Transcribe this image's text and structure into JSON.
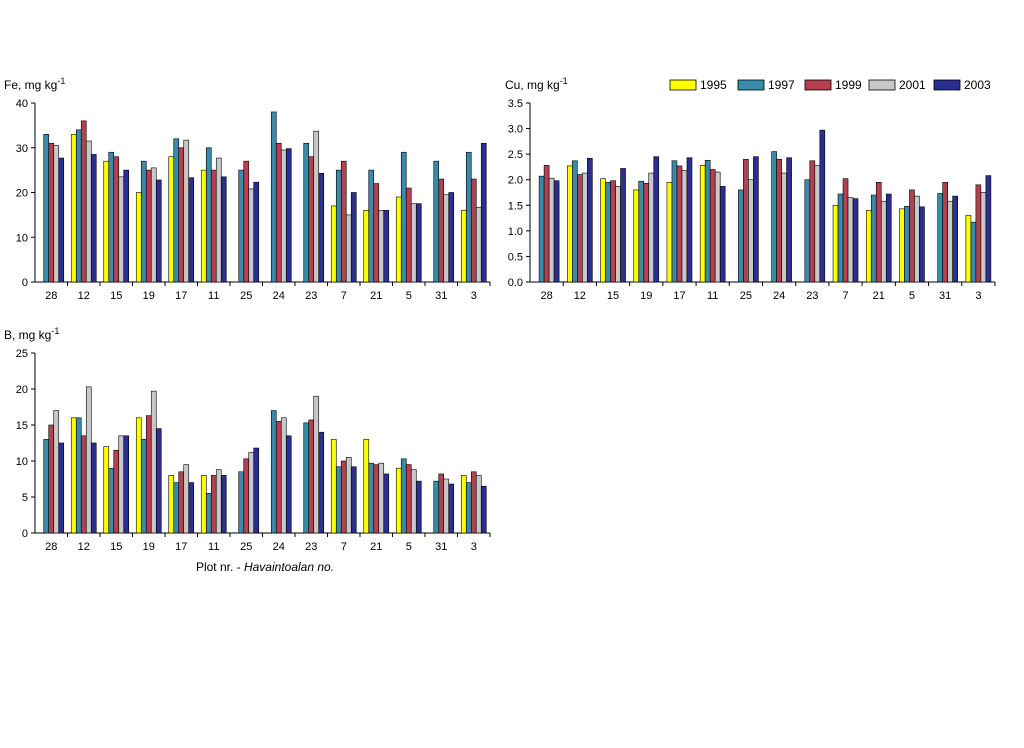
{
  "colors": {
    "1995": "#ffff00",
    "1997": "#3a8aaa",
    "1999": "#b5404f",
    "2001": "#c8c8c8",
    "2003": "#2b2f8f"
  },
  "legend": [
    "1995",
    "1997",
    "1999",
    "2001",
    "2003"
  ],
  "x_title": {
    "prefix": "Plot nr. - ",
    "italic": "Havaintoalan no."
  },
  "chart_data": [
    {
      "id": "fe",
      "type": "bar",
      "title": "",
      "ylabel": "Fe, mg kg",
      "ylabel_sup": "-1",
      "ylim": [
        0,
        40
      ],
      "yticks": [
        "0",
        "10",
        "20",
        "30",
        "40"
      ],
      "categories": [
        "28",
        "12",
        "15",
        "19",
        "17",
        "11",
        "25",
        "24",
        "23",
        "7",
        "21",
        "5",
        "31",
        "3"
      ],
      "series": [
        {
          "name": "1995",
          "values": [
            null,
            33,
            27,
            20,
            28,
            25,
            null,
            null,
            null,
            17,
            16,
            19,
            null,
            16
          ]
        },
        {
          "name": "1997",
          "values": [
            33,
            34,
            29,
            27,
            32,
            30,
            25,
            38,
            31,
            25,
            25,
            29,
            27,
            29
          ]
        },
        {
          "name": "1999",
          "values": [
            31,
            36,
            28,
            25,
            30,
            25,
            27,
            31,
            28,
            27,
            22,
            21,
            23,
            23
          ]
        },
        {
          "name": "2001",
          "values": [
            30.5,
            31.5,
            23.5,
            25.5,
            31.7,
            27.7,
            20.8,
            29.5,
            33.7,
            15,
            16,
            17.5,
            19.5,
            16.7
          ]
        },
        {
          "name": "2003",
          "values": [
            27.7,
            28.5,
            25,
            22.8,
            23.3,
            23.5,
            22.3,
            29.8,
            24.3,
            20,
            16,
            17.5,
            20,
            31
          ]
        }
      ]
    },
    {
      "id": "cu",
      "type": "bar",
      "title": "",
      "ylabel": "Cu, mg kg",
      "ylabel_sup": "-1",
      "ylim": [
        0,
        3.5
      ],
      "yticks": [
        "0.0",
        "0.5",
        "1.0",
        "1.5",
        "2.0",
        "2.5",
        "3.0",
        "3.5"
      ],
      "categories": [
        "28",
        "12",
        "15",
        "19",
        "17",
        "11",
        "25",
        "24",
        "23",
        "7",
        "21",
        "5",
        "31",
        "3"
      ],
      "series": [
        {
          "name": "1995",
          "values": [
            null,
            2.27,
            2.02,
            1.8,
            1.95,
            2.28,
            null,
            null,
            null,
            1.5,
            1.4,
            1.43,
            null,
            1.3
          ]
        },
        {
          "name": "1997",
          "values": [
            2.07,
            2.37,
            1.95,
            1.97,
            2.37,
            2.38,
            1.8,
            2.55,
            2.0,
            1.72,
            1.7,
            1.48,
            1.73,
            1.17
          ]
        },
        {
          "name": "1999",
          "values": [
            2.28,
            2.1,
            1.98,
            1.93,
            2.27,
            2.2,
            2.4,
            2.4,
            2.37,
            2.02,
            1.95,
            1.8,
            1.95,
            1.9
          ]
        },
        {
          "name": "2001",
          "values": [
            2.03,
            2.13,
            1.87,
            2.13,
            2.18,
            2.15,
            2.0,
            2.13,
            2.28,
            1.65,
            1.58,
            1.68,
            1.58,
            1.75
          ]
        },
        {
          "name": "2003",
          "values": [
            1.98,
            2.42,
            2.22,
            2.45,
            2.43,
            1.87,
            2.45,
            2.43,
            2.97,
            1.63,
            1.72,
            1.47,
            1.68,
            2.08
          ]
        }
      ]
    },
    {
      "id": "b",
      "type": "bar",
      "title": "",
      "ylabel": "B, mg kg",
      "ylabel_sup": "-1",
      "ylim": [
        0,
        25
      ],
      "yticks": [
        "0",
        "5",
        "10",
        "15",
        "20",
        "25"
      ],
      "categories": [
        "28",
        "12",
        "15",
        "19",
        "17",
        "11",
        "25",
        "24",
        "23",
        "7",
        "21",
        "5",
        "31",
        "3"
      ],
      "series": [
        {
          "name": "1995",
          "values": [
            null,
            16,
            12,
            16,
            8,
            8,
            null,
            null,
            null,
            13,
            13,
            9,
            null,
            8
          ]
        },
        {
          "name": "1997",
          "values": [
            13,
            16,
            9,
            13,
            7,
            5.5,
            8.5,
            17,
            15.3,
            9.2,
            9.7,
            10.3,
            7.2,
            7
          ]
        },
        {
          "name": "1999",
          "values": [
            15,
            13.5,
            11.5,
            16.3,
            8.5,
            8,
            10.3,
            15.5,
            15.7,
            10,
            9.5,
            9.5,
            8.2,
            8.5
          ]
        },
        {
          "name": "2001",
          "values": [
            17,
            20.3,
            13.5,
            19.7,
            9.5,
            8.8,
            11.2,
            16,
            19,
            10.5,
            9.7,
            8.8,
            7.5,
            8
          ]
        },
        {
          "name": "2003",
          "values": [
            12.5,
            12.5,
            13.5,
            14.5,
            7,
            8,
            11.8,
            13.5,
            14,
            9.2,
            8.2,
            7.2,
            6.8,
            6.5
          ]
        }
      ]
    }
  ]
}
